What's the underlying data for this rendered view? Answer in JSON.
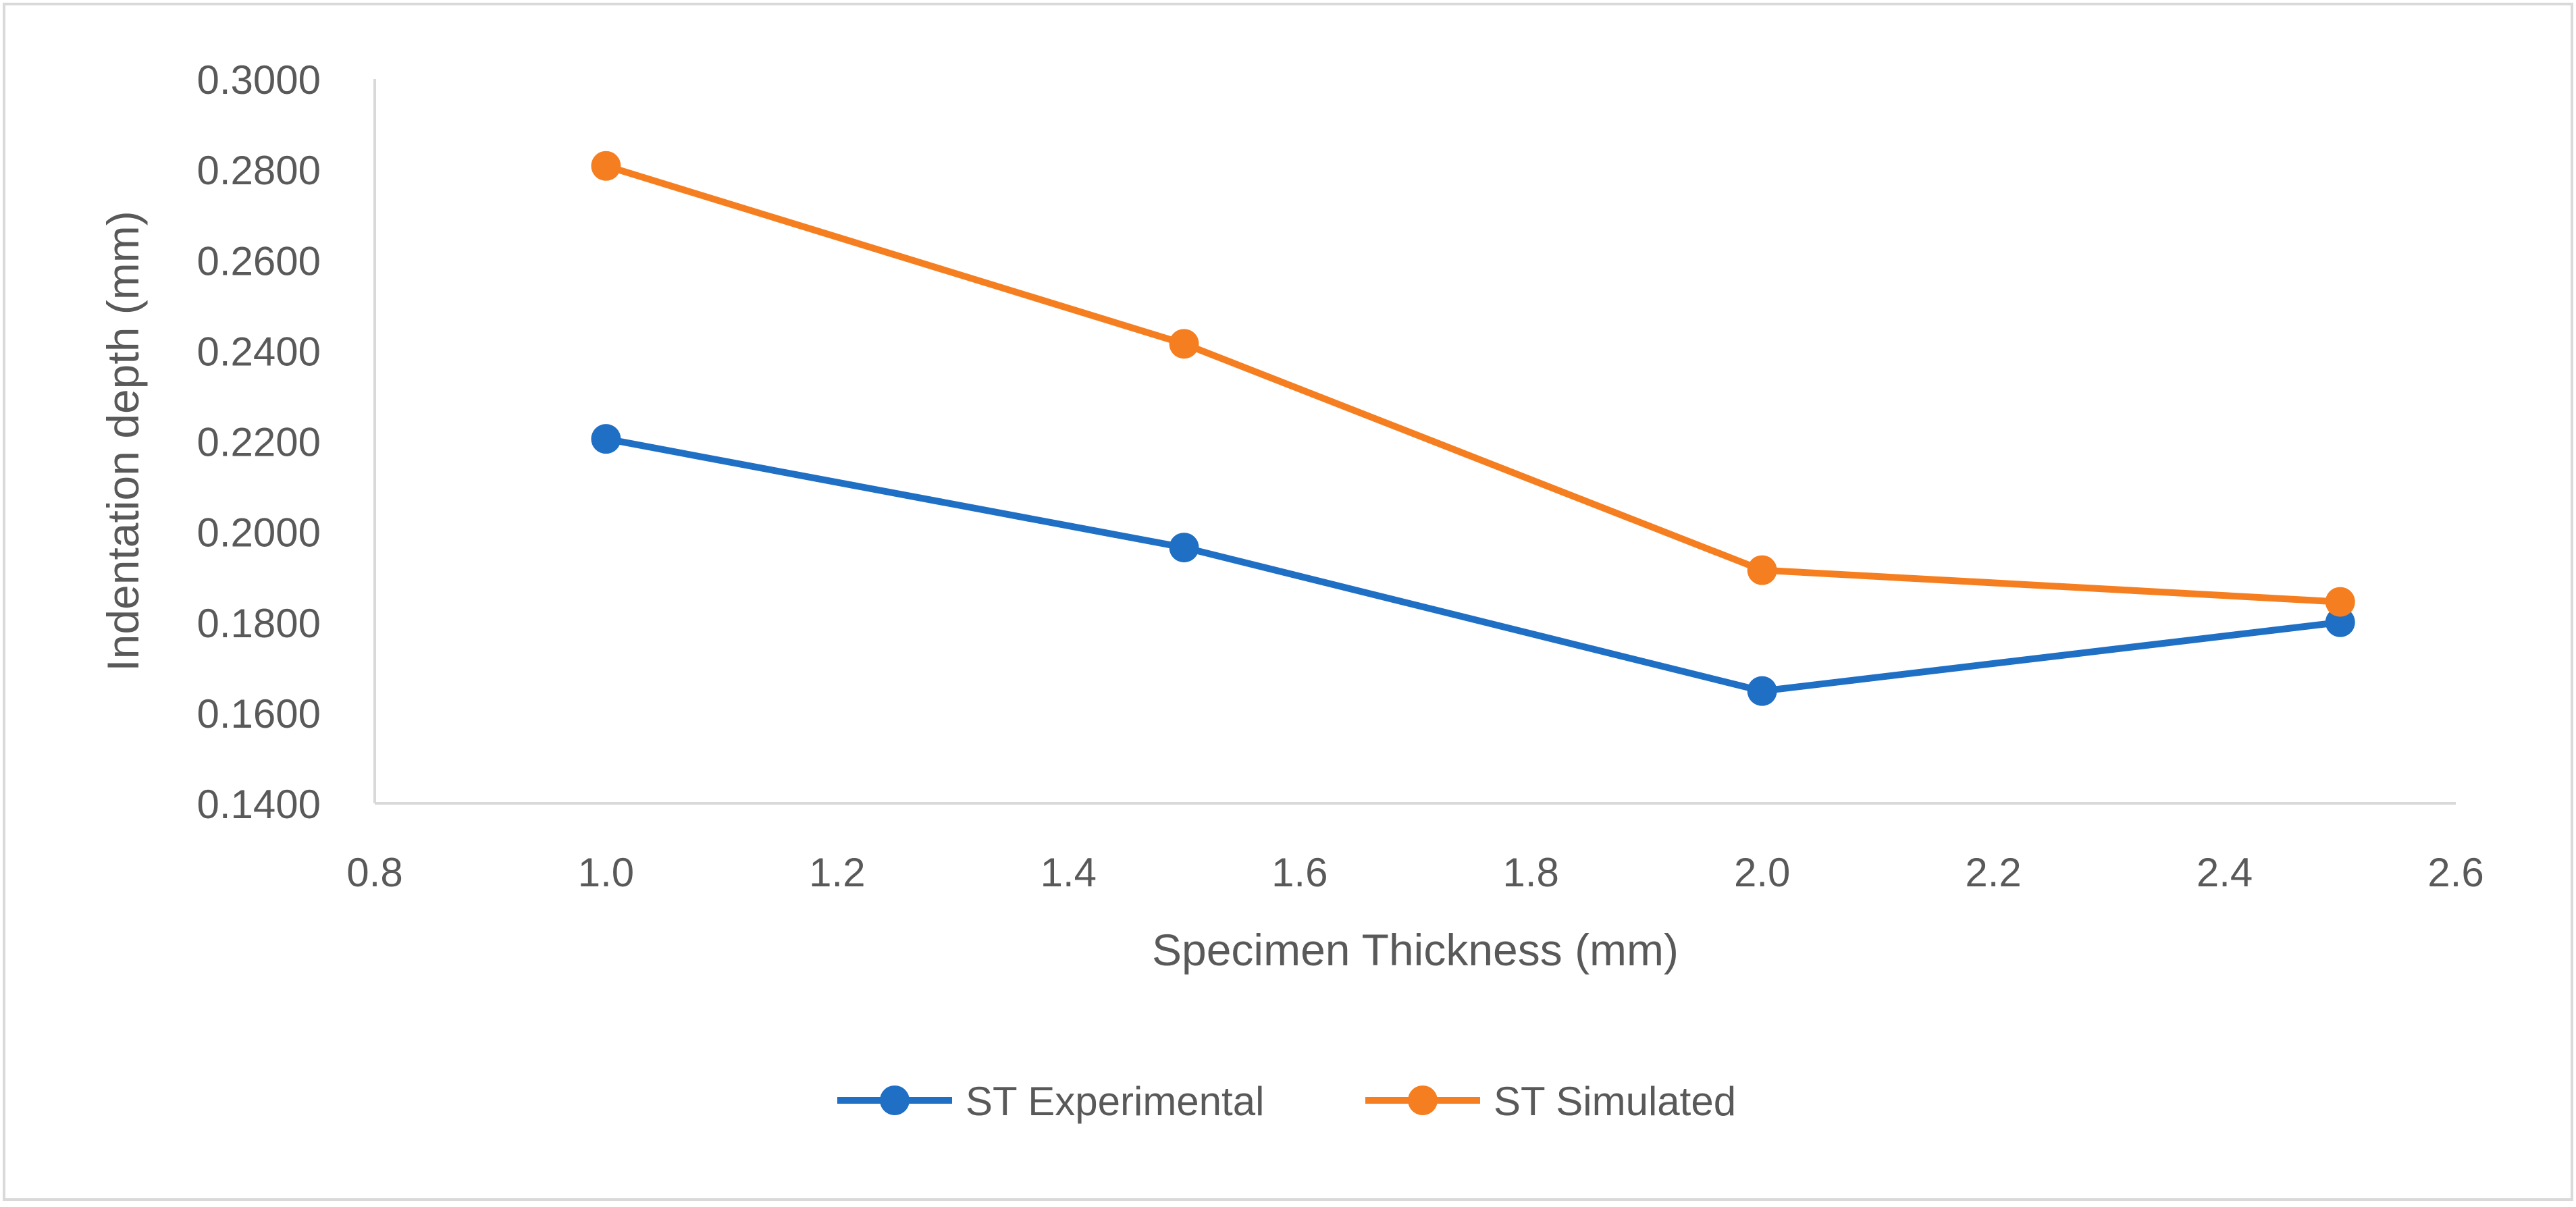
{
  "chart_data": {
    "type": "line",
    "title": "",
    "xlabel": "Specimen Thickness (mm)",
    "ylabel": "Indentation depth (mm)",
    "xlim": [
      0.8,
      2.6
    ],
    "ylim": [
      0.14,
      0.3
    ],
    "x_ticks": [
      "0.8",
      "1.0",
      "1.2",
      "1.4",
      "1.6",
      "1.8",
      "2.0",
      "2.2",
      "2.4",
      "2.6"
    ],
    "y_ticks": [
      "0.1400",
      "0.1600",
      "0.1800",
      "0.2000",
      "0.2200",
      "0.2400",
      "0.2600",
      "0.2800",
      "0.3000"
    ],
    "grid": false,
    "legend_position": "bottom",
    "series": [
      {
        "name": "ST Experimental",
        "color": "#1F6FC5",
        "x": [
          1.0,
          1.5,
          2.0,
          2.5
        ],
        "y": [
          0.2205,
          0.1965,
          0.1648,
          0.18
        ]
      },
      {
        "name": "ST Simulated",
        "color": "#F57F20",
        "x": [
          1.0,
          1.5,
          2.0,
          2.5
        ],
        "y": [
          0.2808,
          0.2415,
          0.1915,
          0.1845
        ]
      }
    ]
  }
}
